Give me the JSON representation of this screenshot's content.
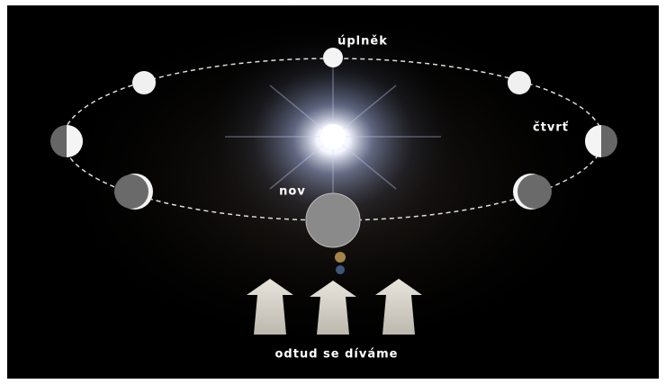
{
  "labels": {
    "full_moon": "úplněk",
    "quarter": "čtvrť",
    "new_moon": "nov",
    "viewpoint": "odtud se díváme"
  }
}
